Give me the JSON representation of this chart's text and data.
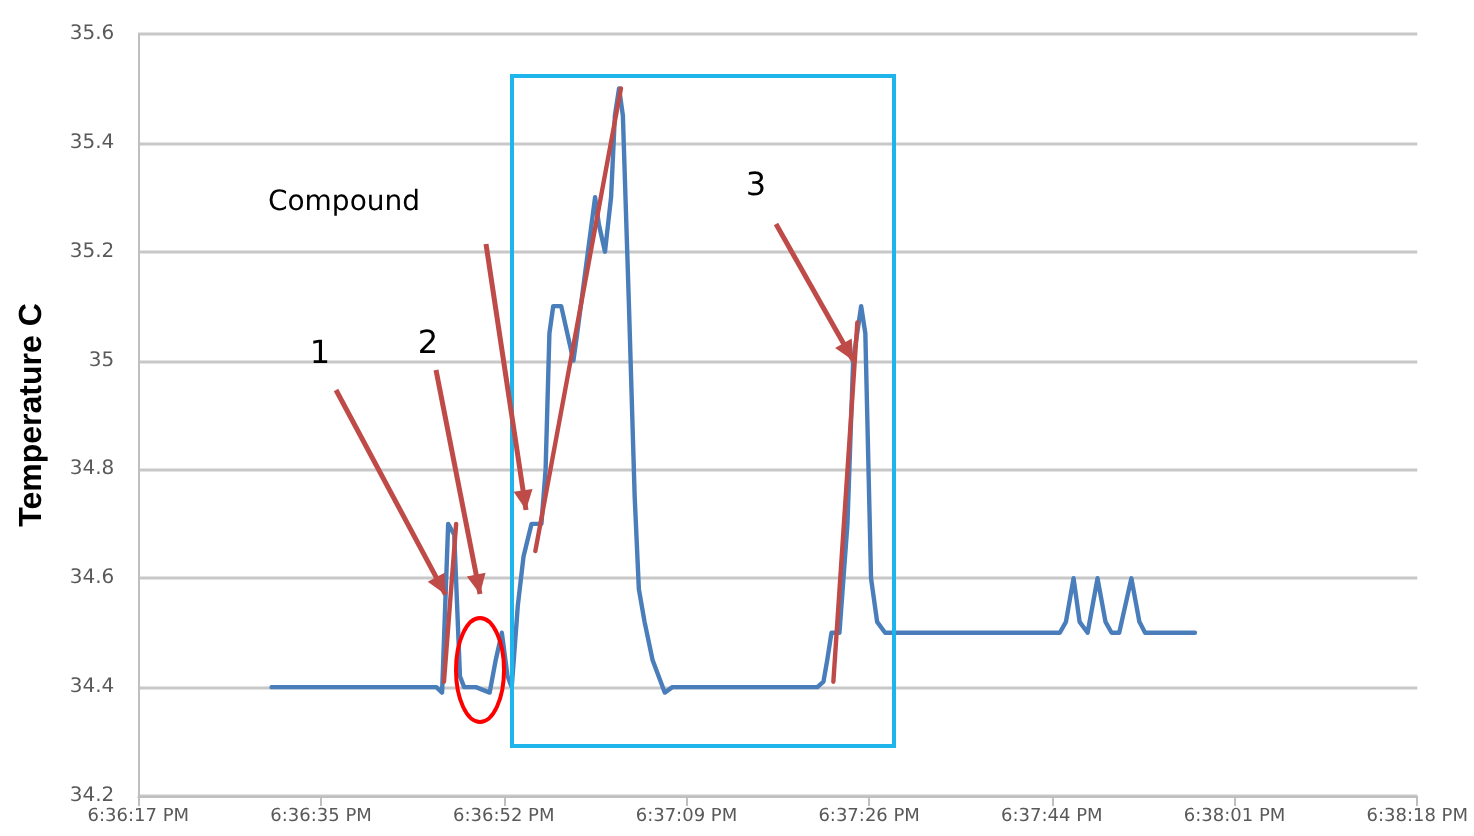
{
  "chart_data": {
    "type": "line",
    "ylabel": "Temperature C",
    "xlim": [
      18.6048,
      18.6384
    ],
    "xticks": [
      {
        "value": 18.6048,
        "label": "6:36:17 PM"
      },
      {
        "value": 18.6096,
        "label": "6:36:35 PM"
      },
      {
        "value": 18.6144,
        "label": "6:36:52 PM"
      },
      {
        "value": 18.6192,
        "label": "6:37:09 PM"
      },
      {
        "value": 18.624,
        "label": "6:37:26 PM"
      },
      {
        "value": 18.6288,
        "label": "6:37:44 PM"
      },
      {
        "value": 18.6336,
        "label": "6:38:01 PM"
      },
      {
        "value": 18.6384,
        "label": "6:38:18 PM"
      }
    ],
    "ylim": [
      34.2,
      35.6
    ],
    "yticks": [
      34.2,
      34.4,
      34.6,
      34.8,
      35,
      35.2,
      35.4,
      35.6
    ],
    "grid": "y",
    "marker": "none",
    "line_style": "solid",
    "x": [
      18.6083,
      18.61263,
      18.61278,
      18.61294,
      18.6131,
      18.61325,
      18.61336,
      18.61367,
      18.61403,
      18.61419,
      18.61435,
      18.6145,
      18.61461,
      18.61477,
      18.61492,
      18.61513,
      18.61539,
      18.6155,
      18.6156,
      18.6157,
      18.61591,
      18.61607,
      18.61623,
      18.61633,
      18.6168,
      18.6169,
      18.61706,
      18.61722,
      18.61732,
      18.61743,
      18.61753,
      18.61769,
      18.61784,
      18.61795,
      18.6181,
      18.61831,
      18.61863,
      18.61883,
      18.62264,
      18.6228,
      18.6229,
      18.62301,
      18.62322,
      18.62343,
      18.62358,
      18.62379,
      18.6239,
      18.62405,
      18.62421,
      18.62442,
      18.62463,
      18.62901,
      18.62917,
      18.62937,
      18.62953,
      18.62974,
      18.63,
      18.63021,
      18.63037,
      18.63057,
      18.63089,
      18.6311,
      18.63125,
      18.63256
    ],
    "series": [
      {
        "color": "#4a7ebb",
        "values": [
          34.4,
          34.4,
          34.39,
          34.7,
          34.68,
          34.42,
          34.4,
          34.4,
          34.39,
          34.45,
          34.5,
          34.42,
          34.4,
          34.55,
          34.64,
          34.7,
          34.7,
          34.8,
          35.05,
          35.1,
          35.1,
          35.05,
          35.0,
          35.05,
          35.3,
          35.25,
          35.2,
          35.3,
          35.45,
          35.5,
          35.45,
          35.1,
          34.75,
          34.58,
          34.52,
          34.45,
          34.39,
          34.4,
          34.4,
          34.41,
          34.45,
          34.5,
          34.5,
          34.7,
          35.0,
          35.1,
          35.05,
          34.6,
          34.52,
          34.5,
          34.5,
          34.5,
          34.52,
          34.6,
          34.52,
          34.5,
          34.6,
          34.52,
          34.5,
          34.5,
          34.6,
          34.52,
          34.5,
          34.5
        ]
      },
      {
        "type": "line",
        "color": "#be4b48",
        "x": [
          18.61283,
          18.61315
        ],
        "values": [
          34.41,
          34.7
        ]
      },
      {
        "type": "line",
        "color": "#be4b48",
        "x": [
          18.61523,
          18.61748
        ],
        "values": [
          34.65,
          35.5
        ]
      },
      {
        "type": "line",
        "color": "#be4b48",
        "x": [
          18.62306,
          18.62369
        ],
        "values": [
          34.41,
          35.07
        ]
      }
    ],
    "annotations": [
      "Compound",
      {
        "text": "1",
        "x": 18.61287,
        "y": 34.57
      },
      "2",
      {
        "text": "3",
        "x": 18.62358,
        "y": 35.0
      }
    ]
  }
}
